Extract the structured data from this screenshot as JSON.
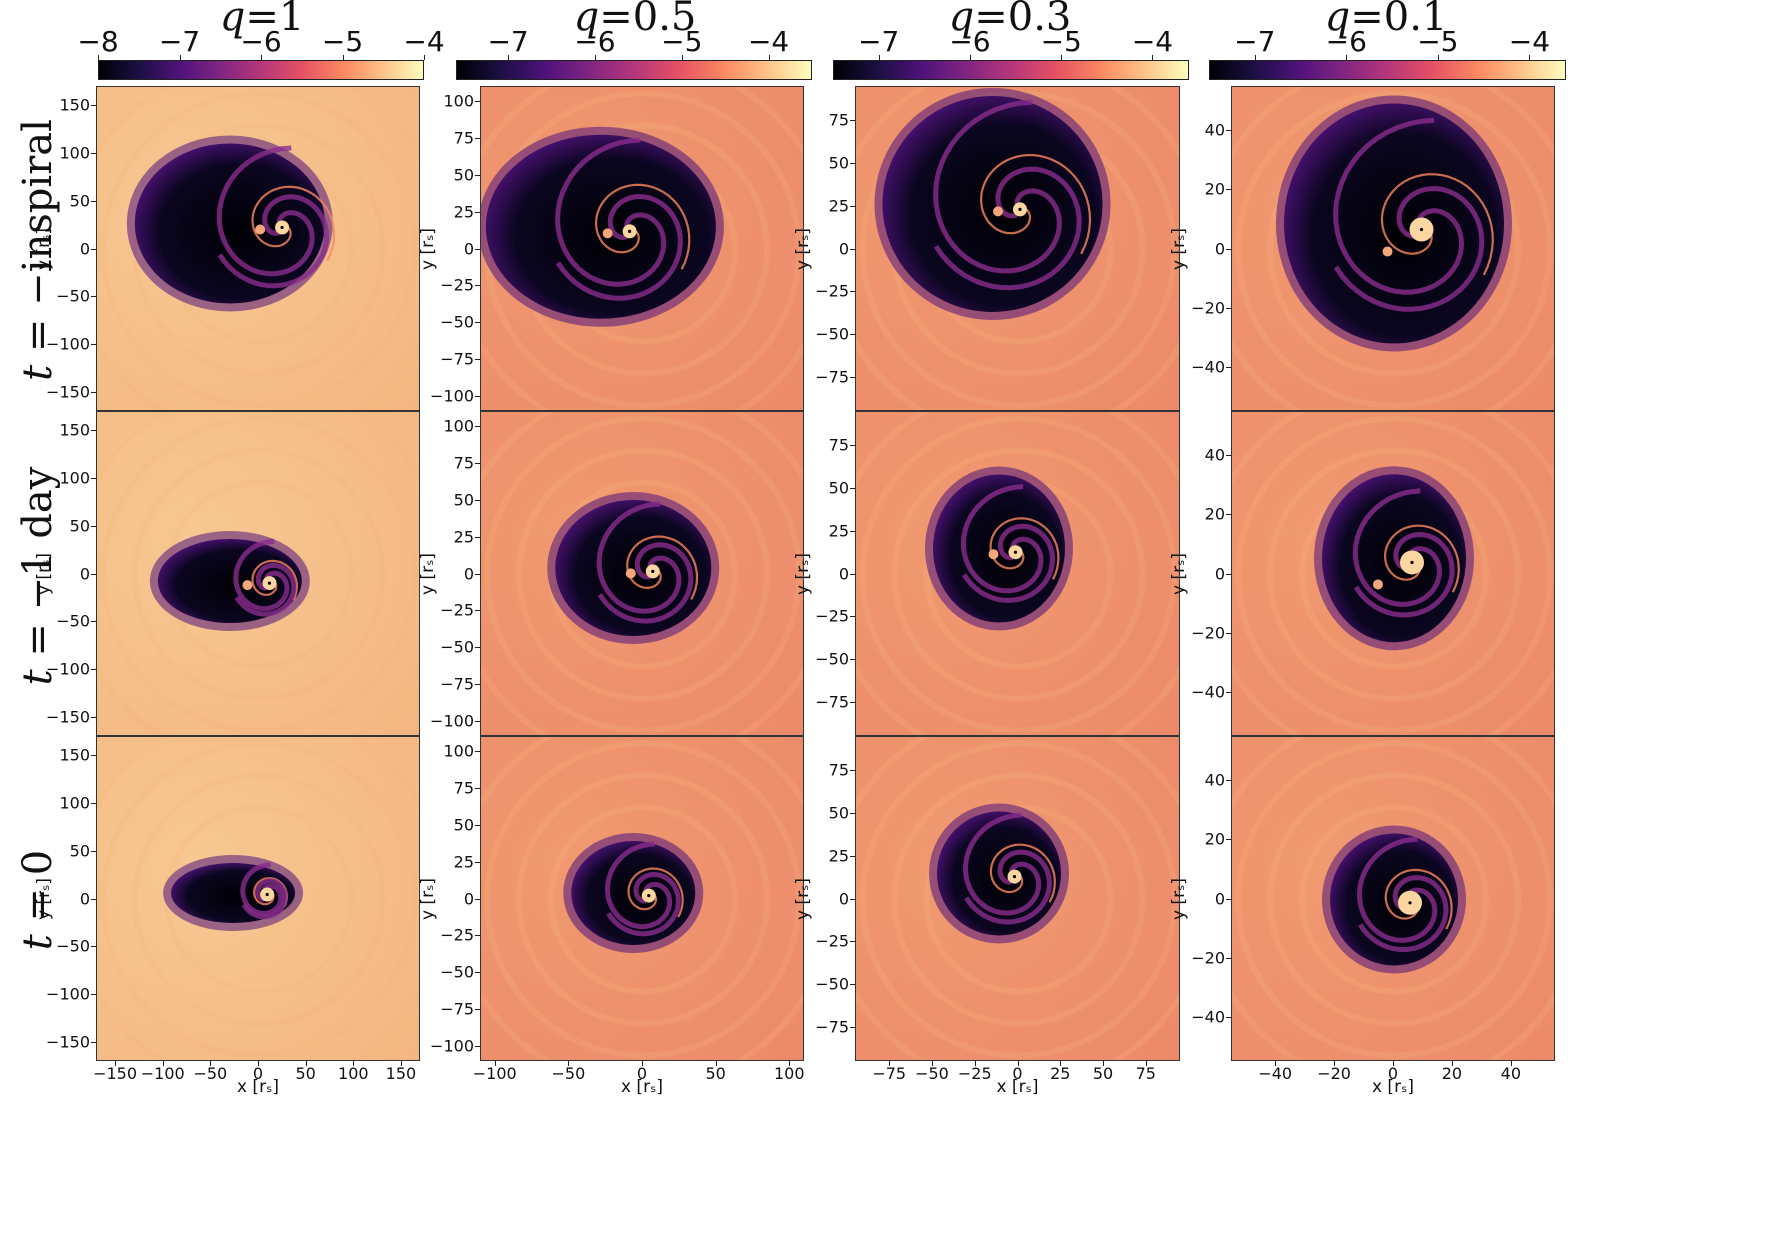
{
  "columns": [
    {
      "q_label": "q",
      "q_value": "=1",
      "cbar_ticks": [
        "−8",
        "−7",
        "−6",
        "−5",
        "−4"
      ],
      "cbar_range": [
        -8,
        -4
      ],
      "axis_ticks": [
        "150",
        "100",
        "50",
        "0",
        "−50",
        "−100",
        "−150"
      ],
      "axis_values": [
        150,
        100,
        50,
        0,
        -50,
        -100,
        -150
      ],
      "x_ticks": [
        "−150",
        "−100",
        "−50",
        "0",
        "50",
        "100",
        "150"
      ],
      "x_values": [
        -150,
        -100,
        -50,
        0,
        50,
        100,
        150
      ],
      "range": 170
    },
    {
      "q_label": "q",
      "q_value": "=0.5",
      "cbar_ticks": [
        "−7",
        "−6",
        "−5",
        "−4"
      ],
      "cbar_range": [
        -7.6,
        -3.5
      ],
      "axis_ticks": [
        "100",
        "75",
        "50",
        "25",
        "0",
        "−25",
        "−50",
        "−75",
        "−100"
      ],
      "axis_values": [
        100,
        75,
        50,
        25,
        0,
        -25,
        -50,
        -75,
        -100
      ],
      "x_ticks": [
        "−100",
        "−50",
        "0",
        "50",
        "100"
      ],
      "x_values": [
        -100,
        -50,
        0,
        50,
        100
      ],
      "range": 110
    },
    {
      "q_label": "q",
      "q_value": "=0.3",
      "cbar_ticks": [
        "−7",
        "−6",
        "−5",
        "−4"
      ],
      "cbar_range": [
        -7.5,
        -3.6
      ],
      "axis_ticks": [
        "75",
        "50",
        "25",
        "0",
        "−25",
        "−50",
        "−75"
      ],
      "axis_values": [
        75,
        50,
        25,
        0,
        -25,
        -50,
        -75
      ],
      "x_ticks": [
        "−75",
        "−50",
        "−25",
        "0",
        "25",
        "50",
        "75"
      ],
      "x_values": [
        -75,
        -50,
        -25,
        0,
        25,
        50,
        75
      ],
      "range": 95
    },
    {
      "q_label": "q",
      "q_value": "=0.1",
      "cbar_ticks": [
        "−7",
        "−6",
        "−5",
        "−4"
      ],
      "cbar_range": [
        -7.5,
        -3.6
      ],
      "axis_ticks": [
        "40",
        "20",
        "0",
        "−20",
        "−40"
      ],
      "axis_values": [
        40,
        20,
        0,
        -20,
        -40
      ],
      "x_ticks": [
        "−40",
        "−20",
        "0",
        "20",
        "40"
      ],
      "x_values": [
        -40,
        -20,
        0,
        20,
        40
      ],
      "range": 55
    }
  ],
  "rows": [
    {
      "label_t": "t",
      "label_rest": " = −inspiral"
    },
    {
      "label_t": "t",
      "label_rest": " = −1 day"
    },
    {
      "label_t": "t",
      "label_rest": " = 0"
    }
  ],
  "ylabel": "y [rₛ]",
  "xlabel": "x [rₛ]",
  "colors": {
    "background_bright": "#f7c892",
    "background_mid": "#ec8a6a",
    "cavity": "#000004",
    "arm": "#4f127b",
    "edge": "#fb8761"
  }
}
